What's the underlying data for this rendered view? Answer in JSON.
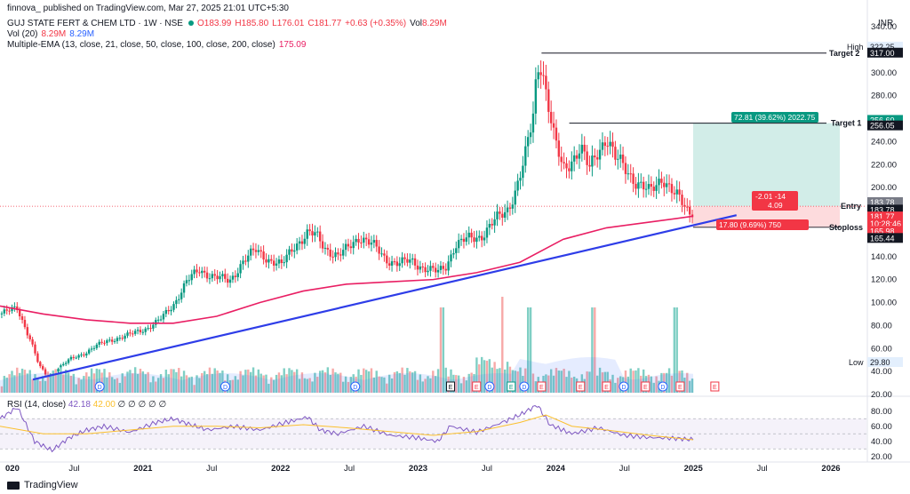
{
  "header": {
    "published": "finnova_ published on TradingView.com, Mar 27, 2025 21:01 UTC+5:30",
    "symbol": "GUJ STATE FERT & CHEM LTD · 1W · NSE",
    "open": "O183.99",
    "high": "H185.80",
    "low": "L176.01",
    "close": "C181.77",
    "change": "+0.63 (+0.35%)",
    "vol": "Vol",
    "vol_value": "8.29M",
    "vol_ind_label": "Vol (20)",
    "vol_ind_a": "8.29M",
    "vol_ind_b": "8.29M",
    "ema_label": "Multiple-EMA (13, close, 21, close, 50, close, 100, close, 200, close)",
    "ema_value": "175.09",
    "currency": "INR"
  },
  "rsi_header": {
    "label": "RSI (14, close)",
    "v1": "42.18",
    "v2": "42.00",
    "extra": "∅ ∅ ∅ ∅ ∅"
  },
  "footer": {
    "brand": "TradingView"
  },
  "colors": {
    "up": "#089981",
    "down": "#f23645",
    "trend": "#2e3de8",
    "ema": "#e91e63",
    "rsi": "#7e57c2",
    "rsi_ma": "#fbc02d"
  },
  "chart_data": {
    "type": "candlestick",
    "symbol": "GUJ STATE FERT & CHEM LTD",
    "interval": "1W",
    "exchange": "NSE",
    "x_ticks": [
      "020",
      "Jul",
      "2021",
      "Jul",
      "2022",
      "Jul",
      "2023",
      "Jul",
      "2024",
      "Jul",
      "2025",
      "Jul",
      "2026"
    ],
    "y_ticks": [
      340,
      320,
      300,
      280,
      260,
      240,
      220,
      200,
      180,
      160,
      140,
      120,
      100,
      80,
      60,
      40,
      20
    ],
    "ylim": [
      20,
      340
    ],
    "price_path": [
      [
        0,
        90
      ],
      [
        0.02,
        95
      ],
      [
        0.035,
        68
      ],
      [
        0.045,
        45
      ],
      [
        0.055,
        35
      ],
      [
        0.065,
        42
      ],
      [
        0.08,
        50
      ],
      [
        0.095,
        55
      ],
      [
        0.11,
        62
      ],
      [
        0.13,
        68
      ],
      [
        0.15,
        72
      ],
      [
        0.17,
        78
      ],
      [
        0.185,
        85
      ],
      [
        0.2,
        98
      ],
      [
        0.215,
        118
      ],
      [
        0.23,
        128
      ],
      [
        0.25,
        122
      ],
      [
        0.265,
        118
      ],
      [
        0.28,
        136
      ],
      [
        0.295,
        145
      ],
      [
        0.31,
        138
      ],
      [
        0.325,
        132
      ],
      [
        0.34,
        150
      ],
      [
        0.355,
        160
      ],
      [
        0.365,
        158
      ],
      [
        0.375,
        148
      ],
      [
        0.39,
        140
      ],
      [
        0.4,
        146
      ],
      [
        0.415,
        158
      ],
      [
        0.43,
        150
      ],
      [
        0.445,
        138
      ],
      [
        0.46,
        134
      ],
      [
        0.475,
        136
      ],
      [
        0.49,
        130
      ],
      [
        0.505,
        126
      ],
      [
        0.515,
        132
      ],
      [
        0.525,
        150
      ],
      [
        0.54,
        155
      ],
      [
        0.555,
        158
      ],
      [
        0.57,
        170
      ],
      [
        0.585,
        180
      ],
      [
        0.595,
        198
      ],
      [
        0.605,
        222
      ],
      [
        0.615,
        260
      ],
      [
        0.62,
        305
      ],
      [
        0.625,
        310
      ],
      [
        0.63,
        285
      ],
      [
        0.64,
        240
      ],
      [
        0.65,
        215
      ],
      [
        0.66,
        225
      ],
      [
        0.67,
        235
      ],
      [
        0.68,
        215
      ],
      [
        0.69,
        232
      ],
      [
        0.7,
        245
      ],
      [
        0.71,
        225
      ],
      [
        0.72,
        218
      ],
      [
        0.735,
        205
      ],
      [
        0.75,
        195
      ],
      [
        0.765,
        210
      ],
      [
        0.775,
        198
      ],
      [
        0.785,
        188
      ],
      [
        0.795,
        178
      ],
      [
        0.8,
        181.77
      ]
    ],
    "volume_spikes": [
      0.51,
      0.58,
      0.61,
      0.685,
      0.78
    ],
    "events": [
      {
        "label": "D",
        "at": 0.115
      },
      {
        "label": "D",
        "at": 0.26
      },
      {
        "label": "D",
        "at": 0.41
      },
      {
        "label": "E",
        "at": 0.52
      },
      {
        "label": "E",
        "at": 0.55
      },
      {
        "label": "D",
        "at": 0.565
      },
      {
        "label": "E",
        "at": 0.59
      },
      {
        "label": "D",
        "at": 0.605
      },
      {
        "label": "E",
        "at": 0.625
      },
      {
        "label": "E",
        "at": 0.67
      },
      {
        "label": "E",
        "at": 0.7
      },
      {
        "label": "D",
        "at": 0.72
      },
      {
        "label": "E",
        "at": 0.745
      },
      {
        "label": "D",
        "at": 0.765
      },
      {
        "label": "E",
        "at": 0.785
      },
      {
        "label": "E",
        "at": 0.825
      }
    ],
    "trendline": {
      "from": [
        0.038,
        33
      ],
      "to": [
        0.85,
        176
      ]
    },
    "ema200": [
      [
        0,
        97
      ],
      [
        0.05,
        90
      ],
      [
        0.1,
        85
      ],
      [
        0.15,
        82
      ],
      [
        0.2,
        82
      ],
      [
        0.25,
        88
      ],
      [
        0.3,
        100
      ],
      [
        0.35,
        110
      ],
      [
        0.4,
        116
      ],
      [
        0.45,
        118
      ],
      [
        0.5,
        120
      ],
      [
        0.55,
        126
      ],
      [
        0.6,
        135
      ],
      [
        0.65,
        155
      ],
      [
        0.7,
        165
      ],
      [
        0.75,
        170
      ],
      [
        0.8,
        175.09
      ]
    ],
    "levels": {
      "target2": {
        "label": "Target 2",
        "value": 317.0
      },
      "target1": {
        "label": "Target 1",
        "value": 256.05
      },
      "entry": {
        "label": "Entry",
        "value": 183.78
      },
      "stoploss": {
        "label": "Stoploss",
        "value": 165.44
      },
      "high": {
        "label": "High",
        "value": 322.25
      },
      "low": {
        "label": "Low",
        "value": 29.8
      }
    },
    "price_labels": [
      "322.25",
      "317.00",
      "256.60",
      "256.05",
      "183.78",
      "183.78",
      "181.77",
      "10:28:46",
      "165.98",
      "165.44"
    ],
    "position_tool": {
      "target_text": "72.81 (39.62%) 2022.75",
      "entry_text": "-2.01 -14",
      "entry_text2": "4.09",
      "stop_text": "17.80 (9.69%) 750"
    },
    "rsi": {
      "ylim": [
        15,
        95
      ],
      "y_ticks": [
        80,
        60,
        40,
        20
      ],
      "band": [
        30,
        70
      ],
      "path": [
        [
          0,
          70
        ],
        [
          0.02,
          85
        ],
        [
          0.04,
          40
        ],
        [
          0.06,
          28
        ],
        [
          0.08,
          45
        ],
        [
          0.1,
          55
        ],
        [
          0.12,
          60
        ],
        [
          0.15,
          52
        ],
        [
          0.18,
          65
        ],
        [
          0.2,
          70
        ],
        [
          0.22,
          62
        ],
        [
          0.24,
          55
        ],
        [
          0.27,
          60
        ],
        [
          0.3,
          55
        ],
        [
          0.33,
          65
        ],
        [
          0.355,
          72
        ],
        [
          0.37,
          55
        ],
        [
          0.39,
          50
        ],
        [
          0.42,
          60
        ],
        [
          0.45,
          48
        ],
        [
          0.48,
          45
        ],
        [
          0.505,
          40
        ],
        [
          0.52,
          60
        ],
        [
          0.55,
          52
        ],
        [
          0.58,
          65
        ],
        [
          0.6,
          75
        ],
        [
          0.62,
          88
        ],
        [
          0.635,
          62
        ],
        [
          0.66,
          50
        ],
        [
          0.69,
          58
        ],
        [
          0.72,
          48
        ],
        [
          0.75,
          45
        ],
        [
          0.78,
          44
        ],
        [
          0.8,
          42.18
        ]
      ],
      "ma_path": [
        [
          0,
          60
        ],
        [
          0.05,
          50
        ],
        [
          0.1,
          50
        ],
        [
          0.15,
          55
        ],
        [
          0.2,
          60
        ],
        [
          0.25,
          60
        ],
        [
          0.3,
          58
        ],
        [
          0.35,
          62
        ],
        [
          0.4,
          58
        ],
        [
          0.45,
          53
        ],
        [
          0.5,
          48
        ],
        [
          0.55,
          53
        ],
        [
          0.6,
          65
        ],
        [
          0.63,
          75
        ],
        [
          0.66,
          60
        ],
        [
          0.7,
          55
        ],
        [
          0.75,
          48
        ],
        [
          0.8,
          42
        ]
      ]
    }
  }
}
